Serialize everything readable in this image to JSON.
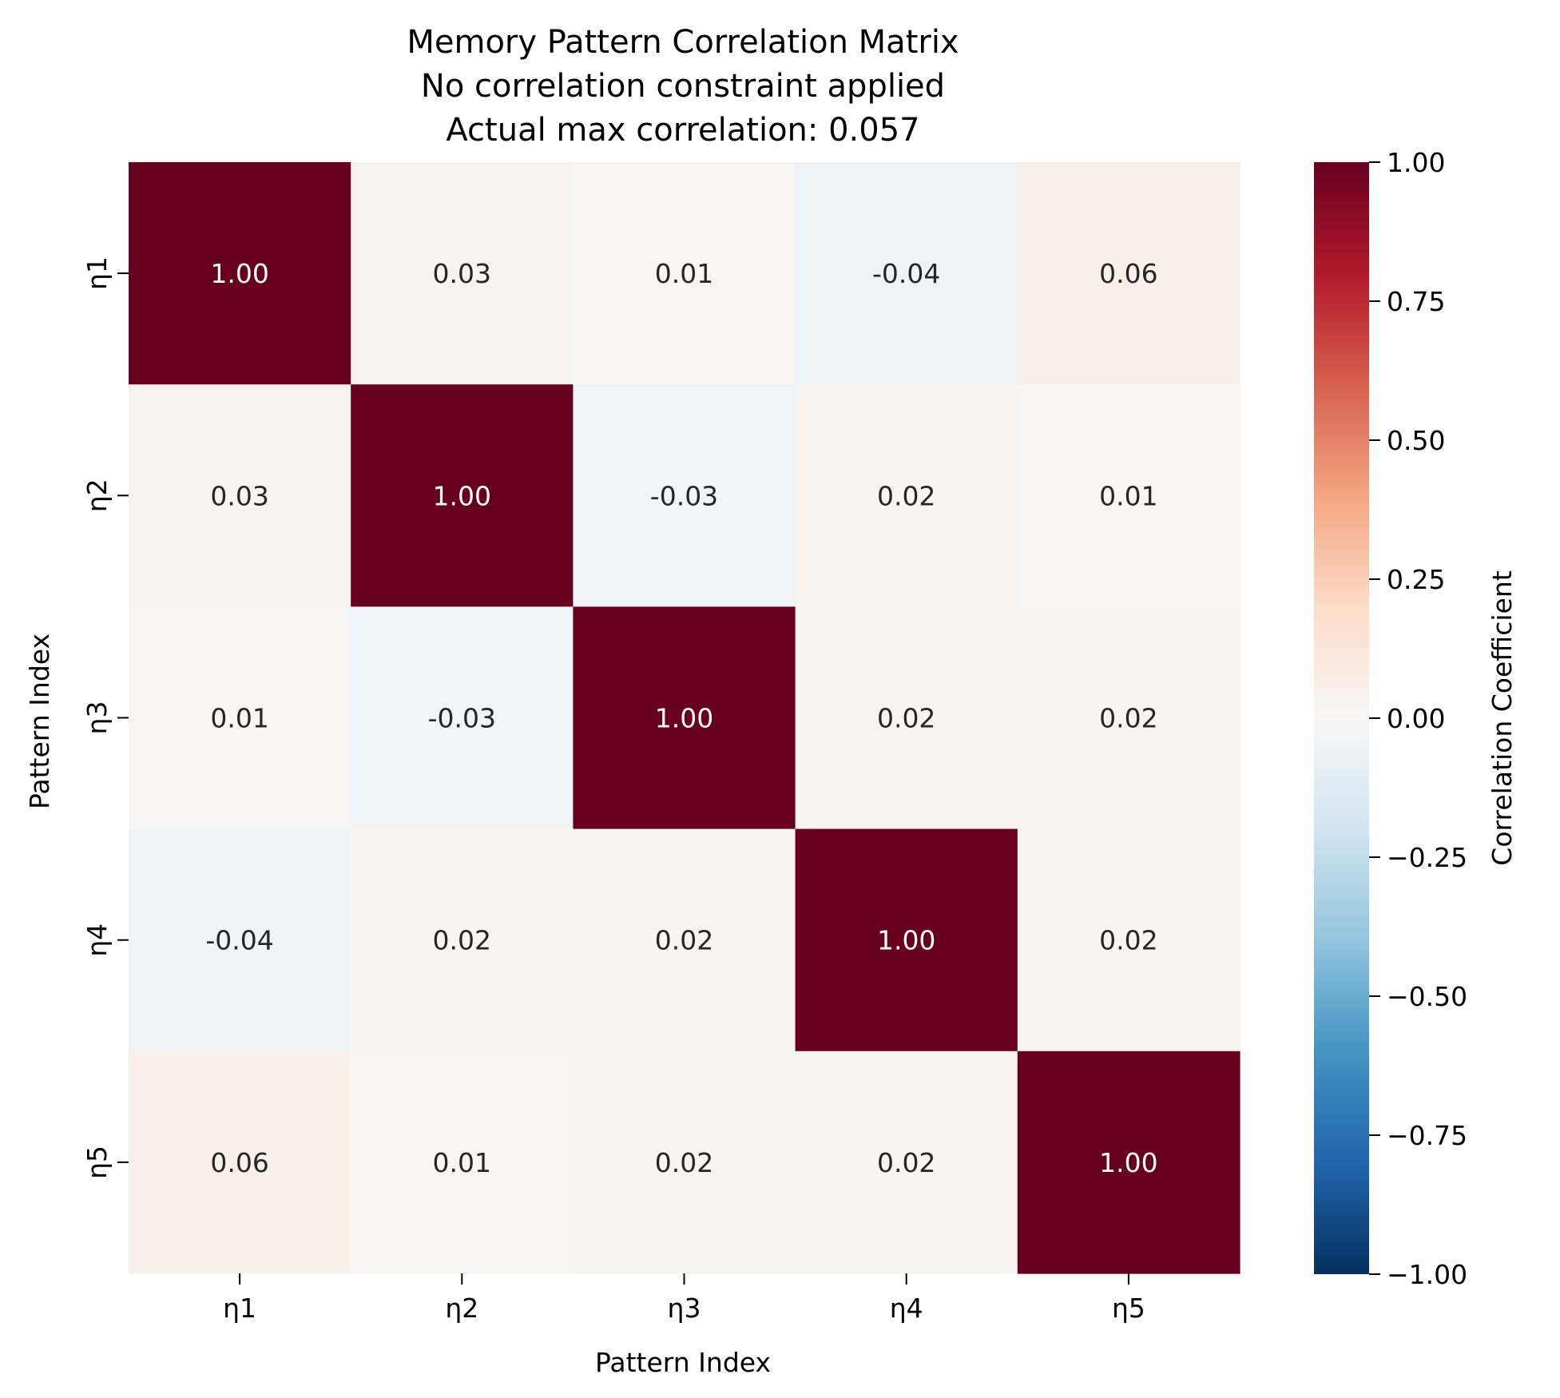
{
  "chart_data": {
    "type": "heatmap",
    "title_lines": [
      "Memory Pattern Correlation Matrix",
      "No correlation constraint applied",
      "Actual max correlation: 0.057"
    ],
    "xlabel": "Pattern Index",
    "ylabel": "Pattern Index",
    "x_categories": [
      "η1",
      "η2",
      "η3",
      "η4",
      "η5"
    ],
    "y_categories": [
      "η1",
      "η2",
      "η3",
      "η4",
      "η5"
    ],
    "values": [
      [
        1.0,
        0.03,
        0.01,
        -0.04,
        0.06
      ],
      [
        0.03,
        1.0,
        -0.03,
        0.02,
        0.01
      ],
      [
        0.01,
        -0.03,
        1.0,
        0.02,
        0.02
      ],
      [
        -0.04,
        0.02,
        0.02,
        1.0,
        0.02
      ],
      [
        0.06,
        0.01,
        0.02,
        0.02,
        1.0
      ]
    ],
    "cell_labels": [
      [
        "1.00",
        "0.03",
        "0.01",
        "-0.04",
        "0.06"
      ],
      [
        "0.03",
        "1.00",
        "-0.03",
        "0.02",
        "0.01"
      ],
      [
        "0.01",
        "-0.03",
        "1.00",
        "0.02",
        "0.02"
      ],
      [
        "-0.04",
        "0.02",
        "0.02",
        "1.00",
        "0.02"
      ],
      [
        "0.06",
        "0.01",
        "0.02",
        "0.02",
        "1.00"
      ]
    ],
    "colorbar": {
      "label": "Correlation Coefficient",
      "vmin": -1.0,
      "vmax": 1.0,
      "colormap": "RdBu_r",
      "tick_values": [
        1.0,
        0.75,
        0.5,
        0.25,
        0.0,
        -0.25,
        -0.5,
        -0.75,
        -1.0
      ],
      "tick_labels": [
        "1.00",
        "0.75",
        "0.50",
        "0.25",
        "0.00",
        "−0.25",
        "−0.50",
        "−0.75",
        "−1.00"
      ]
    },
    "grid": false
  }
}
